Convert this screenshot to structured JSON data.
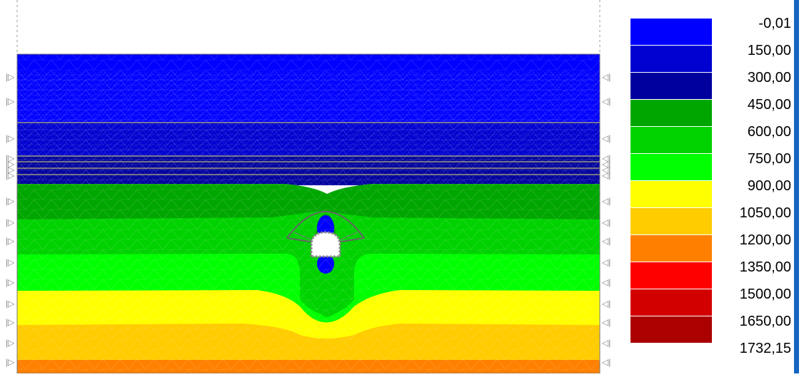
{
  "contour_legend": {
    "levels": [
      {
        "label": "-0,01",
        "color": "#0000ff"
      },
      {
        "label": "150,00",
        "color": "#0000d0"
      },
      {
        "label": "300,00",
        "color": "#00009f"
      },
      {
        "label": "450,00",
        "color": "#00a600"
      },
      {
        "label": "600,00",
        "color": "#00d200"
      },
      {
        "label": "750,00",
        "color": "#00ff00"
      },
      {
        "label": "900,00",
        "color": "#ffff00"
      },
      {
        "label": "1050,00",
        "color": "#ffcc00"
      },
      {
        "label": "1200,00",
        "color": "#ff8000"
      },
      {
        "label": "1350,00",
        "color": "#ff0000"
      },
      {
        "label": "1500,00",
        "color": "#d30000"
      },
      {
        "label": "1650,00",
        "color": "#aa0000"
      },
      {
        "label": "1732,15",
        "color": null
      }
    ]
  },
  "model": {
    "support_symbol_left": "pin-support-icon",
    "support_symbol_right": "pin-support-icon",
    "tunnel": "tunnel-opening"
  }
}
